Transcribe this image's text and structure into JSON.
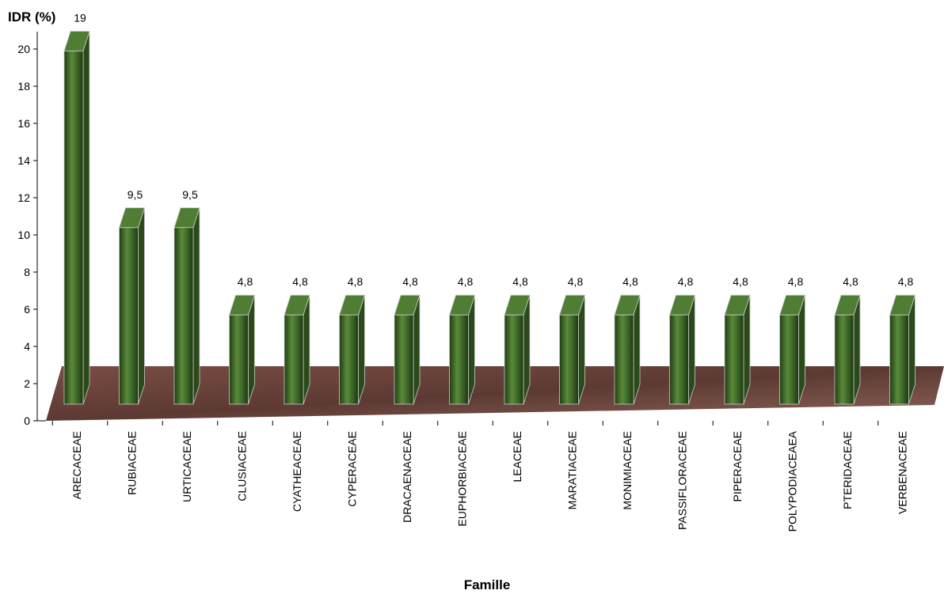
{
  "chart_data": {
    "type": "bar3d",
    "y_label": "IDR (%)",
    "x_label": "Famille",
    "categories": [
      "ARECACEAE",
      "RUBIACEAE",
      "URTICACEAE",
      "CLUSIACEAE",
      "CYATHEACEAE",
      "CYPERACEAE",
      "DRACAENACEAE",
      "EUPHORBIACEAE",
      "LEACEAE",
      "MARATIACEAE",
      "MONIMIACEAE",
      "PASSIFLORACEAE",
      "PIPERACEAE",
      "POLYPODIACEAEA",
      "PTERIDACEAE",
      "VERBENACEAE"
    ],
    "values": [
      19,
      9.5,
      9.5,
      4.8,
      4.8,
      4.8,
      4.8,
      4.8,
      4.8,
      4.8,
      4.8,
      4.8,
      4.8,
      4.8,
      4.8,
      4.8
    ],
    "value_labels": [
      "19",
      "9,5",
      "9,5",
      "4,8",
      "4,8",
      "4,8",
      "4,8",
      "4,8",
      "4,8",
      "4,8",
      "4,8",
      "4,8",
      "4,8",
      "4,8",
      "4,8",
      "4,8"
    ],
    "color": "#3d6a27",
    "ylim": [
      0,
      20
    ],
    "yticks": [
      0,
      2,
      4,
      6,
      8,
      10,
      12,
      14,
      16,
      18,
      20
    ]
  }
}
